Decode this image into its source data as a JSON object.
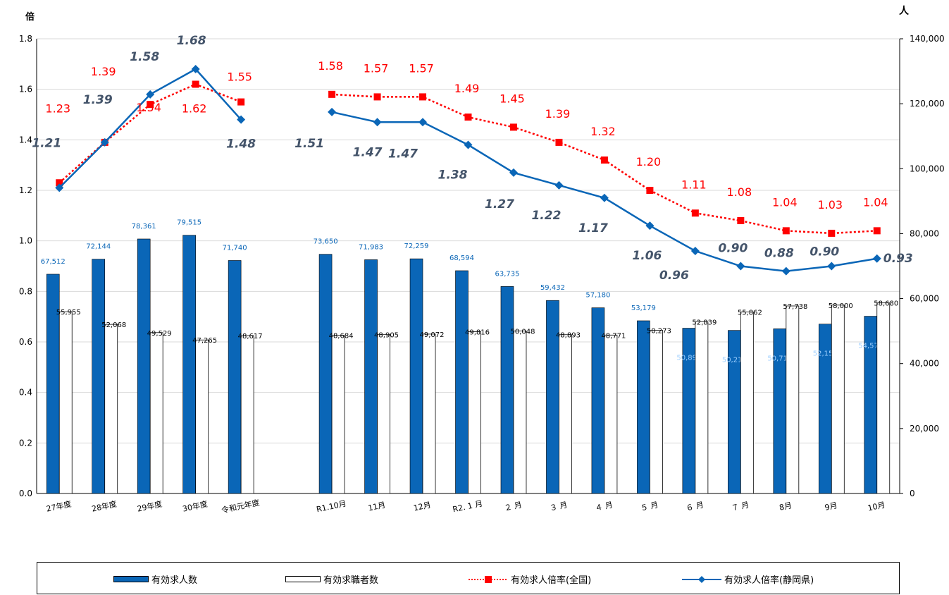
{
  "chart_data": {
    "type": "bar",
    "categories": [
      "27年度",
      "28年度",
      "29年度",
      "30年度",
      "令和元年度",
      "",
      "R1.10月",
      "11月",
      "12月",
      "R2. 1 月",
      "２ 月",
      "３ 月",
      "４ 月",
      "５ 月",
      "６ 月",
      "７ 月",
      "8月",
      "9月",
      "10月"
    ],
    "left_axis": {
      "unit": "倍",
      "ylim": [
        0,
        1.8
      ],
      "ticks": [
        "0.0",
        "0.2",
        "0.4",
        "0.6",
        "0.8",
        "1.0",
        "1.2",
        "1.4",
        "1.6",
        "1.8"
      ]
    },
    "right_axis": {
      "unit": "人",
      "ylim": [
        0,
        140000
      ],
      "ticks": [
        "0",
        "20,000",
        "40,000",
        "60,000",
        "80,000",
        "100,000",
        "120,000",
        "140,000"
      ]
    },
    "series": [
      {
        "name": "有効求人数",
        "kind": "bar",
        "axis": "right",
        "color": "#0a66b7",
        "values": [
          67512,
          72144,
          78361,
          79515,
          71740,
          null,
          73650,
          71983,
          72259,
          68594,
          63735,
          59432,
          57180,
          53179,
          50890,
          50211,
          50710,
          52150,
          54575
        ],
        "labels": [
          "67,512",
          "72,144",
          "78,361",
          "79,515",
          "71,740",
          "",
          "73,650",
          "71,983",
          "72,259",
          "68,594",
          "63,735",
          "59,432",
          "57,180",
          "53,179",
          "50,890",
          "50,211",
          "50,710",
          "52,150",
          "54,575"
        ]
      },
      {
        "name": "有効求職者数",
        "kind": "bar",
        "axis": "right",
        "color": "#ffffff",
        "values": [
          55955,
          52068,
          49529,
          47265,
          48617,
          null,
          48684,
          48905,
          49072,
          49816,
          50048,
          48893,
          48771,
          50273,
          52839,
          55862,
          57738,
          58000,
          58680
        ],
        "labels": [
          "55,955",
          "52,068",
          "49,529",
          "47,265",
          "48,617",
          "",
          "48,684",
          "48,905",
          "49,072",
          "49,816",
          "50,048",
          "48,893",
          "48,771",
          "50,273",
          "52,839",
          "55,862",
          "57,738",
          "58,000",
          "58,680"
        ]
      },
      {
        "name": "有効求人倍率(全国)",
        "kind": "line",
        "axis": "left",
        "color": "#ff0000",
        "values": [
          1.23,
          1.39,
          1.54,
          1.62,
          1.55,
          null,
          1.58,
          1.57,
          1.57,
          1.49,
          1.45,
          1.39,
          1.32,
          1.2,
          1.11,
          1.08,
          1.04,
          1.03,
          1.04
        ],
        "labels": [
          "1.23",
          "1.39",
          "1.54",
          "1.62",
          "1.55",
          "",
          "1.58",
          "1.57",
          "1.57",
          "1.49",
          "1.45",
          "1.39",
          "1.32",
          "1.20",
          "1.11",
          "1.08",
          "1.04",
          "1.03",
          "1.04"
        ]
      },
      {
        "name": "有効求人倍率(静岡県)",
        "kind": "line",
        "axis": "left",
        "color": "#0a66b7",
        "values": [
          1.21,
          1.39,
          1.58,
          1.68,
          1.48,
          null,
          1.51,
          1.47,
          1.47,
          1.38,
          1.27,
          1.22,
          1.17,
          1.06,
          0.96,
          0.9,
          0.88,
          0.9,
          0.93
        ],
        "labels": [
          "1.21",
          "1.39",
          "1.58",
          "1.68",
          "1.48",
          "",
          "1.51",
          "1.47",
          "1.47",
          "1.38",
          "1.27",
          "1.22",
          "1.17",
          "1.06",
          "0.96",
          "0.90",
          "0.88",
          "0.90",
          "0.93"
        ]
      }
    ],
    "grid": true,
    "legend_position": "bottom"
  },
  "legend": {
    "item1": "有効求人数",
    "item2": "有効求職者数",
    "item3": "有効求人倍率(全国)",
    "item4": "有効求人倍率(静岡県)"
  }
}
